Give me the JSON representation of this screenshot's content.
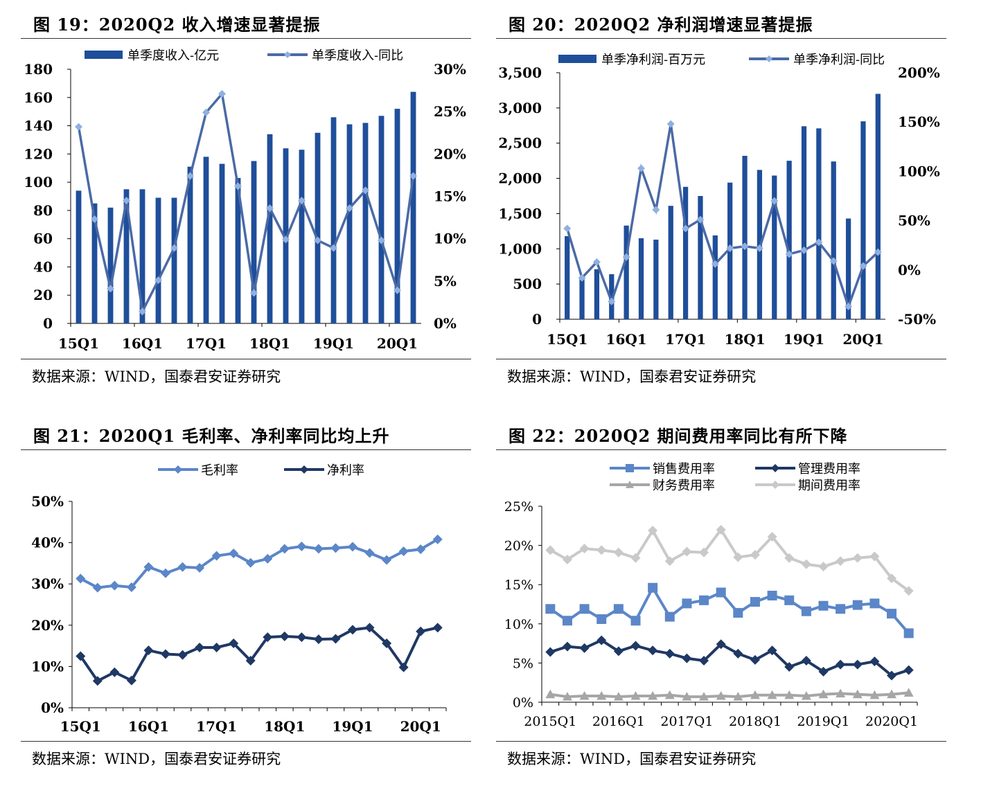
{
  "panels": [
    {
      "title": "图 19：2020Q2 收入增速显著提振",
      "source": "数据来源：WIND，国泰君安证券研究"
    },
    {
      "title": "图 20：2020Q2 净利润增速显著提振",
      "source": "数据来源：WIND，国泰君安证券研究"
    },
    {
      "title": "图 21：2020Q1 毛利率、净利率同比均上升",
      "source": "数据来源：WIND，国泰君安证券研究"
    },
    {
      "title": "图 22：2020Q2 期间费用率同比有所下降",
      "source": "数据来源：WIND，国泰君安证券研究"
    }
  ],
  "chart_data": [
    {
      "type": "bar+line",
      "categories": [
        "15Q1",
        "15Q2",
        "15Q3",
        "15Q4",
        "16Q1",
        "16Q2",
        "16Q3",
        "16Q4",
        "17Q1",
        "17Q2",
        "17Q3",
        "17Q4",
        "18Q1",
        "18Q2",
        "18Q3",
        "18Q4",
        "19Q1",
        "19Q2",
        "19Q3",
        "19Q4",
        "20Q1",
        "20Q2"
      ],
      "x_tick_labels": [
        "15Q1",
        "16Q1",
        "17Q1",
        "18Q1",
        "19Q1",
        "20Q1"
      ],
      "bar_series": {
        "name": "单季度收入-亿元",
        "color": "#1f4e9a",
        "values": [
          94,
          85,
          82,
          95,
          95,
          89,
          89,
          111,
          118,
          113,
          103,
          115,
          134,
          124,
          123,
          135,
          146,
          141,
          142,
          147,
          152,
          164
        ]
      },
      "line_series": {
        "name": "单季度收入-同比",
        "color": "#4a6aa6",
        "values": [
          23.2,
          12.3,
          4.1,
          14.5,
          1.4,
          5.1,
          8.9,
          17.4,
          24.9,
          27.1,
          16.2,
          3.6,
          13.6,
          9.9,
          14.5,
          9.8,
          8.9,
          13.6,
          15.7,
          9.8,
          3.9,
          17.4
        ]
      },
      "y_left": {
        "ticks": [
          "0",
          "20",
          "40",
          "60",
          "80",
          "100",
          "120",
          "140",
          "160",
          "180"
        ],
        "range": [
          0,
          180
        ]
      },
      "y_right": {
        "ticks": [
          "0%",
          "5%",
          "10%",
          "15%",
          "20%",
          "25%",
          "30%"
        ],
        "range": [
          0,
          30
        ]
      },
      "legend_placement": "top"
    },
    {
      "type": "bar+line",
      "categories": [
        "15Q1",
        "15Q2",
        "15Q3",
        "15Q4",
        "16Q1",
        "16Q2",
        "16Q3",
        "16Q4",
        "17Q1",
        "17Q2",
        "17Q3",
        "17Q4",
        "18Q1",
        "18Q2",
        "18Q3",
        "18Q4",
        "19Q1",
        "19Q2",
        "19Q3",
        "19Q4",
        "20Q1",
        "20Q2"
      ],
      "x_tick_labels": [
        "15Q1",
        "16Q1",
        "17Q1",
        "18Q1",
        "19Q1",
        "20Q1"
      ],
      "bar_series": {
        "name": "单季净利润-百万元",
        "color": "#1f4e9a",
        "values": [
          1180,
          570,
          710,
          640,
          1330,
          1150,
          1130,
          1610,
          1880,
          1750,
          1190,
          1940,
          2320,
          2120,
          2040,
          2250,
          2740,
          2710,
          2240,
          1430,
          2810,
          3200
        ]
      },
      "line_series": {
        "name": "单季净利润-同比",
        "color": "#4a6aa6",
        "values": [
          42,
          -8,
          8,
          -32,
          13,
          103,
          61,
          148,
          42,
          51,
          6,
          22,
          24,
          22,
          70,
          16,
          20,
          28,
          9,
          -37,
          4,
          18
        ]
      },
      "y_left": {
        "ticks": [
          "0",
          "500",
          "1,000",
          "1,500",
          "2,000",
          "2,500",
          "3,000",
          "3,500"
        ],
        "range": [
          0,
          3500
        ]
      },
      "y_right": {
        "ticks": [
          "-50%",
          "0%",
          "50%",
          "100%",
          "150%",
          "200%"
        ],
        "range": [
          -50,
          200
        ]
      },
      "legend_placement": "top"
    },
    {
      "type": "line",
      "categories": [
        "15Q1",
        "15Q2",
        "15Q3",
        "15Q4",
        "16Q1",
        "16Q2",
        "16Q3",
        "16Q4",
        "17Q1",
        "17Q2",
        "17Q3",
        "17Q4",
        "18Q1",
        "18Q2",
        "18Q3",
        "18Q4",
        "19Q1",
        "19Q2",
        "19Q3",
        "19Q4",
        "20Q1",
        "20Q2"
      ],
      "x_tick_labels": [
        "15Q1",
        "16Q1",
        "17Q1",
        "18Q1",
        "19Q1",
        "20Q1"
      ],
      "series": [
        {
          "name": "毛利率",
          "color": "#5b86c8",
          "values": [
            31.3,
            29.1,
            29.6,
            29.2,
            34.1,
            32.6,
            34.1,
            33.9,
            36.8,
            37.4,
            35.1,
            36.1,
            38.5,
            39.1,
            38.5,
            38.7,
            39.0,
            37.5,
            35.8,
            37.9,
            38.4,
            40.8
          ]
        },
        {
          "name": "净利率",
          "color": "#1f3864",
          "values": [
            12.5,
            6.5,
            8.6,
            6.6,
            13.9,
            13.0,
            12.8,
            14.6,
            14.6,
            15.6,
            11.4,
            17.1,
            17.3,
            17.1,
            16.6,
            16.7,
            18.9,
            19.4,
            15.6,
            9.8,
            18.5,
            19.4
          ]
        }
      ],
      "y": {
        "ticks": [
          "0%",
          "10%",
          "20%",
          "30%",
          "40%",
          "50%"
        ],
        "range": [
          0,
          50
        ]
      },
      "legend_placement": "top"
    },
    {
      "type": "line",
      "categories": [
        "2015Q1",
        "2015Q2",
        "2015Q3",
        "2015Q4",
        "2016Q1",
        "2016Q2",
        "2016Q3",
        "2016Q4",
        "2017Q1",
        "2017Q2",
        "2017Q3",
        "2017Q4",
        "2018Q1",
        "2018Q2",
        "2018Q3",
        "2018Q4",
        "2019Q1",
        "2019Q2",
        "2019Q3",
        "2019Q4",
        "2020Q1",
        "2020Q2"
      ],
      "x_tick_labels": [
        "2015Q1",
        "2016Q1",
        "2017Q1",
        "2018Q1",
        "2019Q1",
        "2020Q1"
      ],
      "series": [
        {
          "name": "销售费用率",
          "color": "#5b86c8",
          "marker": "square",
          "values": [
            11.9,
            10.4,
            11.9,
            10.6,
            11.9,
            10.4,
            14.6,
            10.9,
            12.6,
            13.0,
            14.0,
            11.4,
            12.8,
            13.6,
            13.0,
            11.6,
            12.3,
            11.9,
            12.4,
            12.6,
            11.3,
            8.8
          ]
        },
        {
          "name": "管理费用率",
          "color": "#1f3864",
          "marker": "diamond",
          "values": [
            6.4,
            7.1,
            6.9,
            7.9,
            6.5,
            7.2,
            6.6,
            6.2,
            5.6,
            5.3,
            7.4,
            6.2,
            5.4,
            6.6,
            4.5,
            5.3,
            3.9,
            4.8,
            4.8,
            5.2,
            3.4,
            4.1
          ]
        },
        {
          "name": "财务费用率",
          "color": "#a6a6a6",
          "marker": "triangle",
          "values": [
            1.0,
            0.7,
            0.8,
            0.8,
            0.7,
            0.8,
            0.8,
            0.9,
            0.7,
            0.7,
            0.8,
            0.7,
            0.9,
            0.9,
            0.9,
            0.8,
            1.0,
            1.1,
            1.0,
            0.9,
            1.0,
            1.2
          ]
        },
        {
          "name": "期间费用率",
          "color": "#c9c9c9",
          "marker": "diamond",
          "values": [
            19.4,
            18.2,
            19.6,
            19.4,
            19.1,
            18.4,
            21.9,
            18.0,
            19.2,
            19.1,
            22.0,
            18.5,
            18.8,
            21.1,
            18.4,
            17.6,
            17.3,
            18.0,
            18.4,
            18.6,
            15.8,
            14.2
          ]
        }
      ],
      "y": {
        "ticks": [
          "0%",
          "5%",
          "10%",
          "15%",
          "20%",
          "25%"
        ],
        "range": [
          0,
          25
        ]
      },
      "legend_placement": "top"
    }
  ]
}
